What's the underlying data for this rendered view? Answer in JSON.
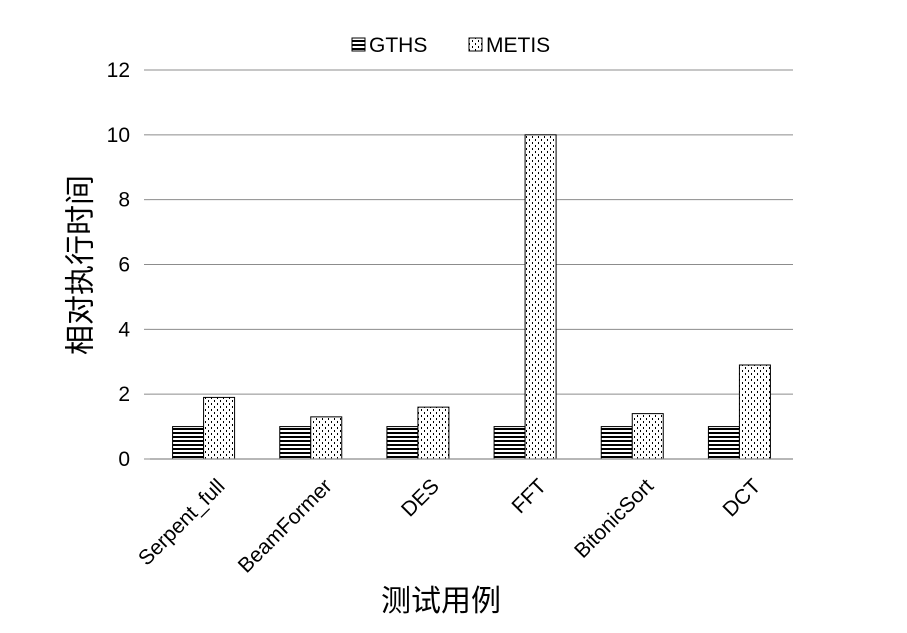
{
  "chart_data": {
    "type": "bar",
    "title": "",
    "xlabel": "测试用例",
    "ylabel": "相对执行时间",
    "categories": [
      "Serpent_full",
      "BeamFormer",
      "DES",
      "FFT",
      "BitonicSort",
      "DCT"
    ],
    "series": [
      {
        "name": "GTHS",
        "pattern": "horizontal-lines",
        "values": [
          1,
          1,
          1,
          1,
          1,
          1
        ]
      },
      {
        "name": "METIS",
        "pattern": "dots",
        "values": [
          1.9,
          1.3,
          1.6,
          10.0,
          1.4,
          2.9
        ]
      }
    ],
    "ylim": [
      0,
      12
    ],
    "yticks": [
      0,
      2,
      4,
      6,
      8,
      10,
      12
    ],
    "grid": true,
    "legend_position": "top"
  }
}
